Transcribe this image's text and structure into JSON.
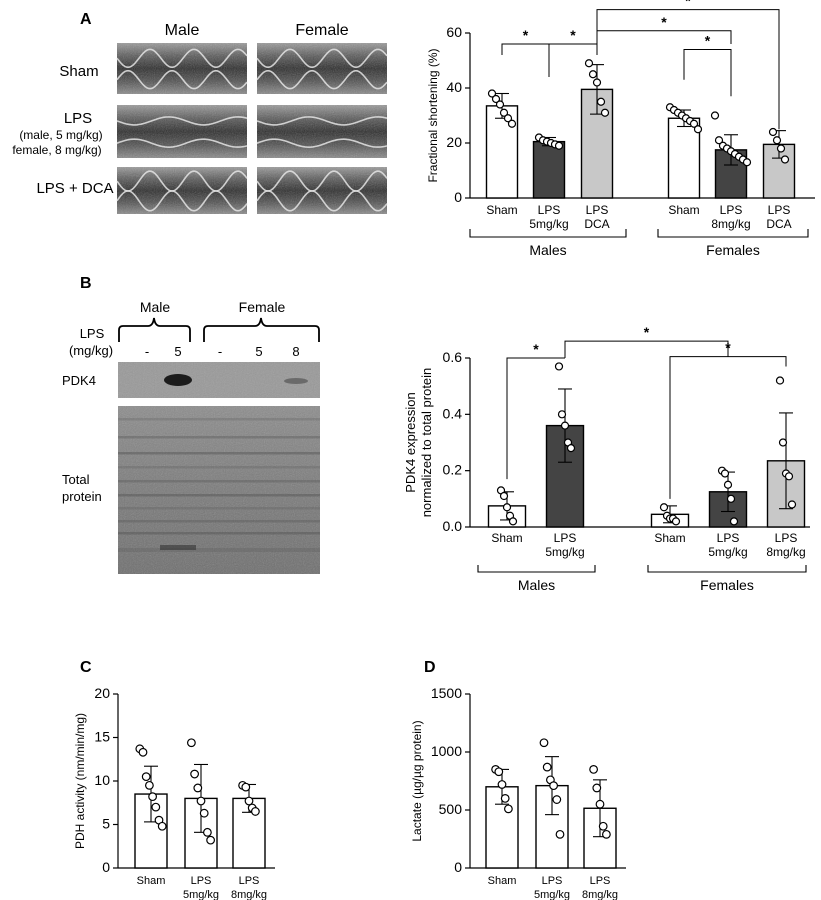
{
  "panels": {
    "A": {
      "letter": "A",
      "echo": {
        "col_labels": [
          "Male",
          "Female"
        ],
        "rows": [
          {
            "lines": [
              "Sham"
            ]
          },
          {
            "lines": [
              "LPS",
              "(male, 5 mg/kg)",
              "female, 8 mg/kg)"
            ]
          },
          {
            "lines": [
              "LPS + DCA"
            ]
          }
        ]
      }
    },
    "B": {
      "letter": "B",
      "blot": {
        "group_labels": [
          "Male",
          "Female"
        ],
        "lps_label": [
          "LPS",
          "(mg/kg)"
        ],
        "lane_labels": [
          "-",
          "5",
          "-",
          "5",
          "8"
        ],
        "pdk4_label": "PDK4",
        "total_label": [
          "Total",
          "protein"
        ]
      }
    },
    "C": {
      "letter": "C"
    },
    "D": {
      "letter": "D"
    }
  },
  "chart_data": [
    {
      "id": "A",
      "type": "bar",
      "ylabel": "Fractional shortening (%)",
      "ylim": [
        0,
        60
      ],
      "yticks": [
        0,
        20,
        40,
        60
      ],
      "ytick_labels": [
        "0",
        "20",
        "40",
        "60"
      ],
      "categories": [
        [
          "Sham"
        ],
        [
          "LPS",
          "5mg/kg"
        ],
        [
          "LPS",
          "DCA"
        ],
        [
          "Sham"
        ],
        [
          "LPS",
          "8mg/kg"
        ],
        [
          "LPS",
          "DCA"
        ]
      ],
      "values": [
        33.5,
        20.5,
        39.5,
        29,
        17.5,
        19.5
      ],
      "errors": [
        4.5,
        1.5,
        9,
        3,
        5.5,
        5
      ],
      "fills": [
        "#ffffff",
        "#444444",
        "#c8c8c8",
        "#ffffff",
        "#444444",
        "#c8c8c8"
      ],
      "points": [
        [
          38,
          36,
          34,
          31,
          29,
          27
        ],
        [
          22,
          21,
          20.5,
          20,
          19.5,
          19
        ],
        [
          49,
          45,
          42,
          35,
          31
        ],
        [
          33,
          32,
          31,
          30,
          29,
          28,
          27,
          25
        ],
        [
          30,
          21,
          19,
          18,
          17,
          16,
          15,
          14,
          13
        ],
        [
          24,
          21,
          18,
          14
        ]
      ],
      "groups": [
        "Males",
        "Females"
      ],
      "significance": [
        "*",
        "*",
        "*",
        "*",
        "*"
      ]
    },
    {
      "id": "B",
      "type": "bar",
      "ylabel": [
        "PDK4 expression",
        "normalized to total protein"
      ],
      "ylim": [
        0,
        0.6
      ],
      "yticks": [
        0,
        0.2,
        0.4,
        0.6
      ],
      "ytick_labels": [
        "0.0",
        "0.2",
        "0.4",
        "0.6"
      ],
      "categories": [
        [
          "Sham"
        ],
        [
          "LPS",
          "5mg/kg"
        ],
        [
          "Sham"
        ],
        [
          "LPS",
          "5mg/kg"
        ],
        [
          "LPS",
          "8mg/kg"
        ]
      ],
      "values": [
        0.075,
        0.36,
        0.045,
        0.125,
        0.235
      ],
      "errors": [
        0.05,
        0.13,
        0.03,
        0.07,
        0.17
      ],
      "fills": [
        "#ffffff",
        "#444444",
        "#ffffff",
        "#444444",
        "#c8c8c8"
      ],
      "points": [
        [
          0.13,
          0.11,
          0.07,
          0.04,
          0.02
        ],
        [
          0.57,
          0.4,
          0.36,
          0.3,
          0.28
        ],
        [
          0.07,
          0.04,
          0.03,
          0.03,
          0.02
        ],
        [
          0.2,
          0.19,
          0.15,
          0.1,
          0.02
        ],
        [
          0.52,
          0.3,
          0.19,
          0.18,
          0.08
        ]
      ],
      "groups": [
        "Males",
        "Females"
      ],
      "significance": [
        "*",
        "*",
        "*"
      ]
    },
    {
      "id": "C",
      "type": "bar",
      "ylabel": "PDH activity (nm/min/mg)",
      "ylim": [
        0,
        20
      ],
      "yticks": [
        0,
        5,
        10,
        15,
        20
      ],
      "ytick_labels": [
        "0",
        "5",
        "10",
        "15",
        "20"
      ],
      "categories": [
        [
          "Sham"
        ],
        [
          "LPS",
          "5mg/kg"
        ],
        [
          "LPS",
          "8mg/kg"
        ]
      ],
      "values": [
        8.5,
        8,
        8
      ],
      "errors": [
        3.2,
        3.9,
        1.6
      ],
      "fills": [
        "#ffffff",
        "#ffffff",
        "#ffffff"
      ],
      "points": [
        [
          13.7,
          13.3,
          10.5,
          9.5,
          8.2,
          7,
          5.5,
          4.8
        ],
        [
          14.4,
          10.8,
          9.2,
          7.7,
          6.3,
          4.1,
          3.2
        ],
        [
          9.5,
          9.3,
          7.7,
          6.9,
          6.5
        ]
      ]
    },
    {
      "id": "D",
      "type": "bar",
      "ylabel": "Lactate (µg/µg protein)",
      "ylim": [
        0,
        1500
      ],
      "yticks": [
        0,
        500,
        1000,
        1500
      ],
      "ytick_labels": [
        "0",
        "500",
        "1000",
        "1500"
      ],
      "categories": [
        [
          "Sham"
        ],
        [
          "LPS",
          "5mg/kg"
        ],
        [
          "LPS",
          "8mg/kg"
        ]
      ],
      "values": [
        700,
        710,
        515
      ],
      "errors": [
        150,
        250,
        245
      ],
      "fills": [
        "#ffffff",
        "#ffffff",
        "#ffffff"
      ],
      "points": [
        [
          850,
          830,
          720,
          600,
          510
        ],
        [
          1080,
          870,
          760,
          710,
          590,
          290
        ],
        [
          850,
          690,
          550,
          360,
          290
        ]
      ]
    }
  ]
}
